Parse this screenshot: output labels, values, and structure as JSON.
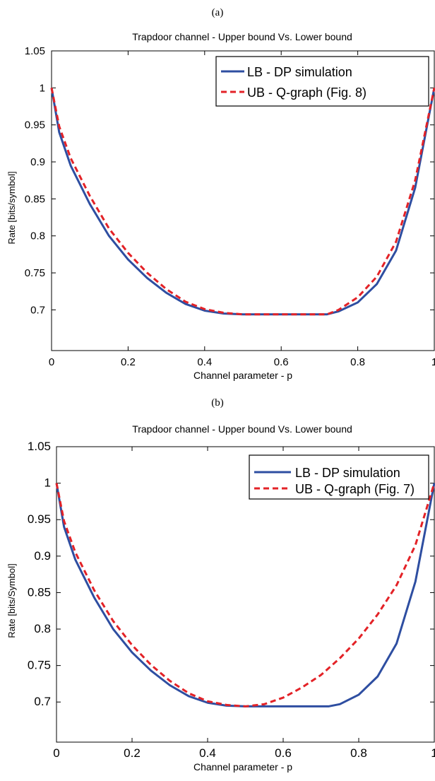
{
  "chart_data": [
    {
      "panel_label": "(a)",
      "type": "line",
      "title": "Trapdoor channel - Upper bound Vs. Lower bound",
      "xlabel": "Channel parameter - p",
      "ylabel": "Rate [bits/symbol]",
      "xlim": [
        0,
        1
      ],
      "ylim": [
        0.645,
        1.05
      ],
      "xticks": [
        0,
        0.2,
        0.4,
        0.6,
        0.8,
        1
      ],
      "xtick_labels": [
        "0",
        "0.2",
        "0.4",
        "0.6",
        "0.8",
        "1"
      ],
      "yticks": [
        0.7,
        0.75,
        0.8,
        0.85,
        0.9,
        0.95,
        1,
        1.05
      ],
      "ytick_labels": [
        "0.7",
        "0.75",
        "0.8",
        "0.85",
        "0.9",
        "0.95",
        "1",
        "1.05"
      ],
      "grid": false,
      "legend_position": "top-right",
      "series": [
        {
          "name": "LB - DP simulation",
          "color": "#2e4ea1",
          "style": "solid",
          "x": [
            0,
            0.02,
            0.05,
            0.1,
            0.15,
            0.2,
            0.25,
            0.3,
            0.35,
            0.4,
            0.45,
            0.5,
            0.55,
            0.6,
            0.65,
            0.7,
            0.72,
            0.75,
            0.8,
            0.85,
            0.9,
            0.95,
            1
          ],
          "y": [
            1,
            0.94,
            0.895,
            0.843,
            0.8,
            0.768,
            0.743,
            0.723,
            0.708,
            0.699,
            0.695,
            0.694,
            0.694,
            0.694,
            0.694,
            0.694,
            0.694,
            0.698,
            0.71,
            0.735,
            0.78,
            0.865,
            1
          ]
        },
        {
          "name": "UB - Q-graph (Fig. 8)",
          "color": "#e32227",
          "style": "dashed",
          "x": [
            0,
            0.02,
            0.05,
            0.1,
            0.15,
            0.2,
            0.25,
            0.3,
            0.35,
            0.4,
            0.45,
            0.5,
            0.55,
            0.6,
            0.65,
            0.7,
            0.72,
            0.75,
            0.8,
            0.85,
            0.9,
            0.95,
            1
          ],
          "y": [
            1,
            0.948,
            0.905,
            0.854,
            0.81,
            0.777,
            0.75,
            0.728,
            0.711,
            0.701,
            0.696,
            0.694,
            0.694,
            0.694,
            0.694,
            0.694,
            0.694,
            0.7,
            0.717,
            0.745,
            0.792,
            0.875,
            1
          ]
        }
      ]
    },
    {
      "panel_label": "(b)",
      "type": "line",
      "title": "Trapdoor channel - Upper bound Vs. Lower bound",
      "xlabel": "Channel parameter - p",
      "ylabel": "Rate [bits/Symbol]",
      "xlim": [
        0,
        1
      ],
      "ylim": [
        0.645,
        1.05
      ],
      "xticks": [
        0,
        0.2,
        0.4,
        0.6,
        0.8,
        1
      ],
      "xtick_labels": [
        "0",
        "0.2",
        "0.4",
        "0.6",
        "0.8",
        "1"
      ],
      "yticks": [
        0.7,
        0.75,
        0.8,
        0.85,
        0.9,
        0.95,
        1,
        1.05
      ],
      "ytick_labels": [
        "0.7",
        "0.75",
        "0.8",
        "0.85",
        "0.9",
        "0.95",
        "1",
        "1.05"
      ],
      "grid": false,
      "legend_position": "top-right",
      "series": [
        {
          "name": "LB - DP simulation",
          "color": "#2e4ea1",
          "style": "solid",
          "x": [
            0,
            0.02,
            0.05,
            0.1,
            0.15,
            0.2,
            0.25,
            0.3,
            0.35,
            0.4,
            0.45,
            0.5,
            0.55,
            0.6,
            0.65,
            0.7,
            0.72,
            0.75,
            0.8,
            0.85,
            0.9,
            0.95,
            1
          ],
          "y": [
            1,
            0.94,
            0.895,
            0.843,
            0.8,
            0.768,
            0.743,
            0.723,
            0.708,
            0.699,
            0.695,
            0.694,
            0.694,
            0.694,
            0.694,
            0.694,
            0.694,
            0.697,
            0.71,
            0.735,
            0.78,
            0.865,
            1
          ]
        },
        {
          "name": "UB - Q-graph (Fig. 7)",
          "color": "#e32227",
          "style": "dashed",
          "x": [
            0,
            0.02,
            0.05,
            0.1,
            0.15,
            0.2,
            0.25,
            0.3,
            0.35,
            0.4,
            0.45,
            0.5,
            0.55,
            0.6,
            0.65,
            0.7,
            0.75,
            0.8,
            0.85,
            0.9,
            0.95,
            1
          ],
          "y": [
            1,
            0.948,
            0.905,
            0.853,
            0.811,
            0.778,
            0.751,
            0.729,
            0.712,
            0.701,
            0.696,
            0.694,
            0.697,
            0.706,
            0.72,
            0.737,
            0.76,
            0.787,
            0.82,
            0.86,
            0.915,
            1
          ]
        }
      ]
    }
  ]
}
